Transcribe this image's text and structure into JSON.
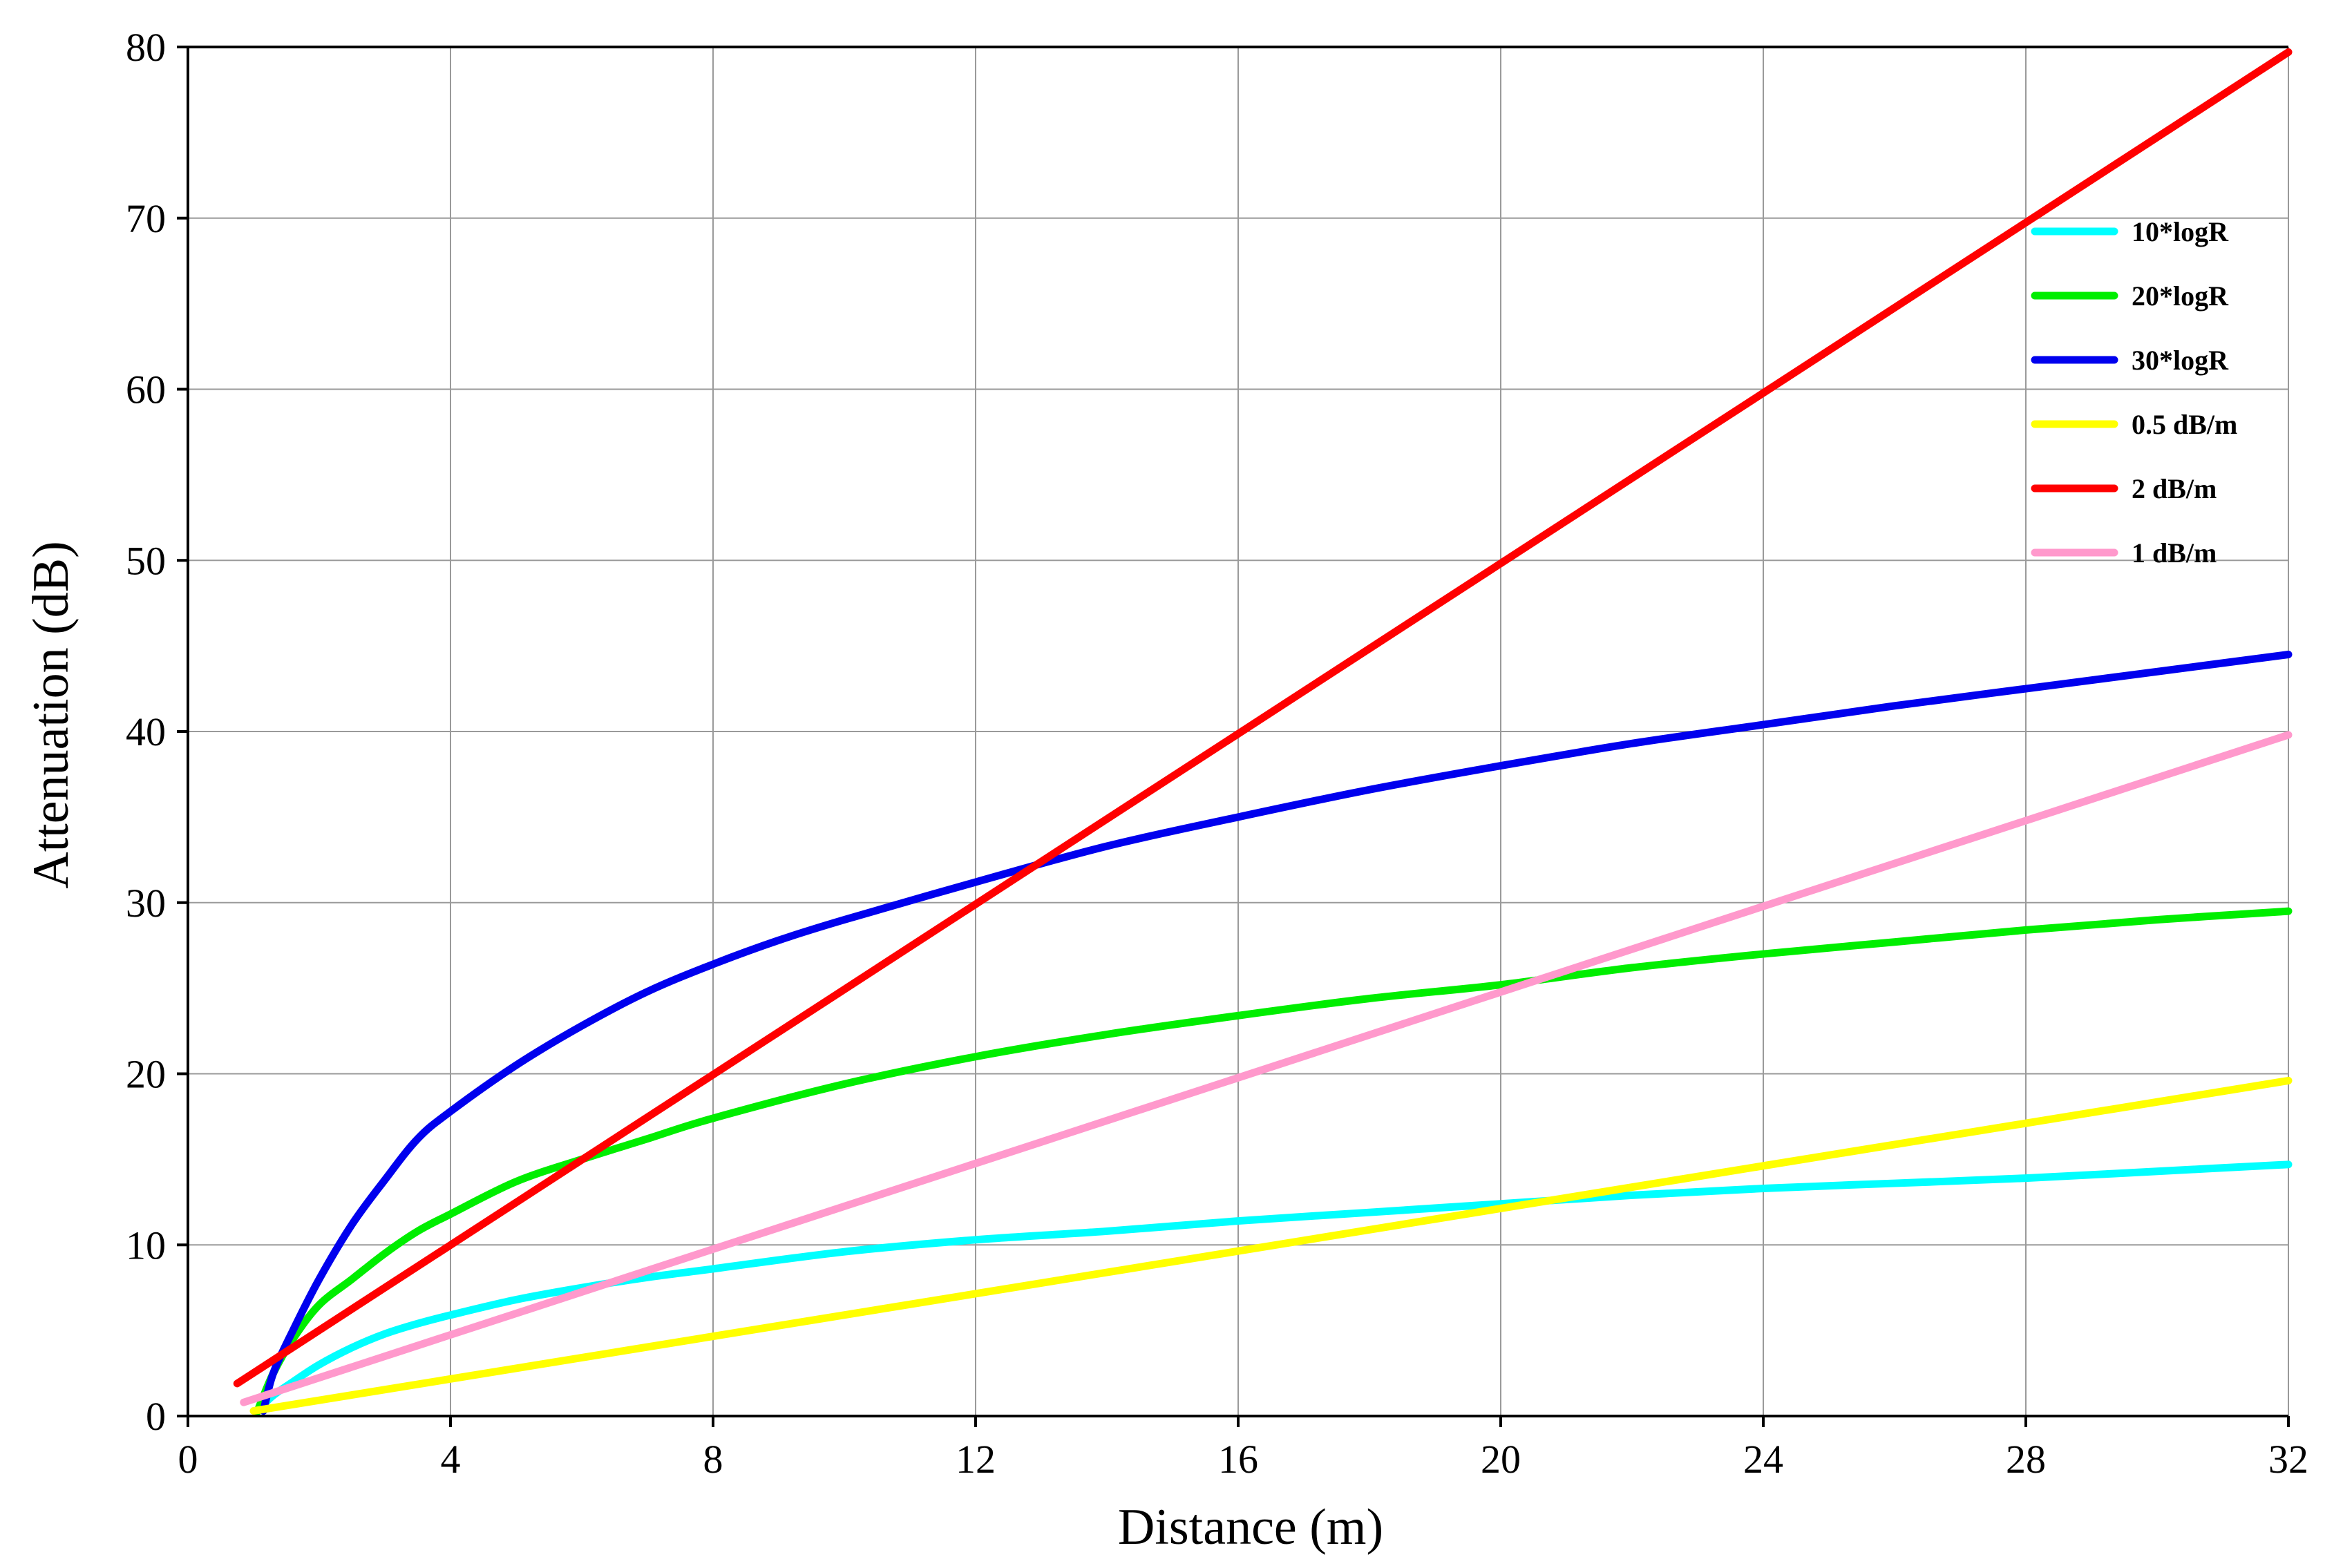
{
  "chart_data": {
    "type": "line",
    "xlabel": "Distance (m)",
    "ylabel": "Attenuation (dB)",
    "xlim": [
      0,
      32
    ],
    "ylim": [
      0,
      80
    ],
    "xticks": [
      0,
      4,
      8,
      12,
      16,
      20,
      24,
      28,
      32
    ],
    "yticks": [
      0,
      10,
      20,
      30,
      40,
      50,
      60,
      70,
      80
    ],
    "grid": true,
    "legend_position": "top-right",
    "series": [
      {
        "name": "10*logR",
        "color": "#00ffff",
        "points": [
          [
            1.05,
            0.3
          ],
          [
            1.3,
            1.2
          ],
          [
            1.6,
            2.0
          ],
          [
            2.0,
            3.0
          ],
          [
            2.5,
            4.0
          ],
          [
            3.0,
            4.8
          ],
          [
            3.5,
            5.4
          ],
          [
            4.0,
            5.9
          ],
          [
            5.0,
            6.8
          ],
          [
            6.0,
            7.5
          ],
          [
            7.0,
            8.1
          ],
          [
            8.0,
            8.6
          ],
          [
            10.0,
            9.6
          ],
          [
            12.0,
            10.3
          ],
          [
            14.0,
            10.8
          ],
          [
            16.0,
            11.4
          ],
          [
            18.0,
            11.9
          ],
          [
            20.0,
            12.4
          ],
          [
            22.0,
            12.9
          ],
          [
            24.0,
            13.3
          ],
          [
            26.0,
            13.6
          ],
          [
            28.0,
            13.9
          ],
          [
            30.0,
            14.3
          ],
          [
            32.0,
            14.7
          ]
        ]
      },
      {
        "name": "20*logR",
        "color": "#00ee00",
        "points": [
          [
            1.05,
            0.2
          ],
          [
            1.3,
            2.5
          ],
          [
            1.6,
            4.5
          ],
          [
            2.0,
            6.5
          ],
          [
            2.5,
            8.0
          ],
          [
            3.0,
            9.5
          ],
          [
            3.5,
            10.8
          ],
          [
            4.0,
            11.8
          ],
          [
            5.0,
            13.7
          ],
          [
            6.0,
            15.0
          ],
          [
            7.0,
            16.2
          ],
          [
            8.0,
            17.4
          ],
          [
            10.0,
            19.4
          ],
          [
            12.0,
            21.0
          ],
          [
            14.0,
            22.3
          ],
          [
            16.0,
            23.4
          ],
          [
            18.0,
            24.4
          ],
          [
            20.0,
            25.2
          ],
          [
            22.0,
            26.2
          ],
          [
            24.0,
            27.0
          ],
          [
            26.0,
            27.7
          ],
          [
            28.0,
            28.4
          ],
          [
            30.0,
            29.0
          ],
          [
            32.0,
            29.5
          ]
        ]
      },
      {
        "name": "30*logR",
        "color": "#0000ee",
        "points": [
          [
            1.15,
            0.3
          ],
          [
            1.3,
            2.5
          ],
          [
            1.6,
            5.0
          ],
          [
            2.0,
            8.0
          ],
          [
            2.5,
            11.2
          ],
          [
            3.0,
            13.8
          ],
          [
            3.5,
            16.2
          ],
          [
            4.0,
            17.8
          ],
          [
            5.0,
            20.5
          ],
          [
            6.0,
            22.8
          ],
          [
            7.0,
            24.8
          ],
          [
            8.0,
            26.4
          ],
          [
            9.0,
            27.8
          ],
          [
            10.0,
            29.0
          ],
          [
            12.0,
            31.2
          ],
          [
            14.0,
            33.3
          ],
          [
            16.0,
            35.0
          ],
          [
            18.0,
            36.6
          ],
          [
            20.0,
            38.0
          ],
          [
            22.0,
            39.3
          ],
          [
            24.0,
            40.4
          ],
          [
            26.0,
            41.5
          ],
          [
            28.0,
            42.5
          ],
          [
            30.0,
            43.5
          ],
          [
            32.0,
            44.5
          ]
        ]
      },
      {
        "name": "0.5 dB/m",
        "color": "#ffff00",
        "points": [
          [
            1.0,
            0.3
          ],
          [
            32.0,
            19.6
          ]
        ]
      },
      {
        "name": "2 dB/m",
        "color": "#ff0000",
        "points": [
          [
            0.75,
            1.9
          ],
          [
            32.0,
            79.7
          ]
        ]
      },
      {
        "name": "1 dB/m",
        "color": "#ff99cc",
        "points": [
          [
            0.85,
            0.8
          ],
          [
            32.0,
            39.8
          ]
        ]
      }
    ]
  }
}
